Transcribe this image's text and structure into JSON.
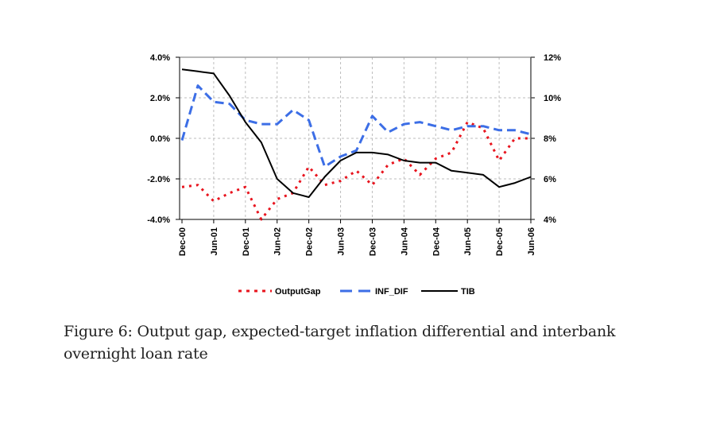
{
  "chart_data": {
    "type": "line",
    "title": "",
    "xlabel": "",
    "ylabel": "",
    "y2label": "",
    "ylim": [
      -4.0,
      4.0
    ],
    "y2lim": [
      4,
      12
    ],
    "yticks": [
      "4.0%",
      "2.0%",
      "0.0%",
      "-2.0%",
      "-4.0%"
    ],
    "ytick_values": [
      4,
      2,
      0,
      -2,
      -4
    ],
    "y2ticks": [
      "12%",
      "10%",
      "8%",
      "6%",
      "4%"
    ],
    "y2tick_values": [
      12,
      10,
      8,
      6,
      4
    ],
    "grid": true,
    "legend_position": "bottom",
    "x": [
      "Dec-00",
      "Mar-01",
      "Jun-01",
      "Sep-01",
      "Dec-01",
      "Mar-02",
      "Jun-02",
      "Sep-02",
      "Dec-02",
      "Mar-03",
      "Jun-03",
      "Sep-03",
      "Dec-03",
      "Mar-04",
      "Jun-04",
      "Sep-04",
      "Dec-04",
      "Mar-05",
      "Jun-05",
      "Sep-05",
      "Dec-05",
      "Mar-06",
      "Jun-06"
    ],
    "xtick_labels": [
      "Dec-00",
      "Jun-01",
      "Dec-01",
      "Jun-02",
      "Dec-02",
      "Jun-03",
      "Dec-03",
      "Jun-04",
      "Dec-04",
      "Jun-05",
      "Dec-05",
      "Jun-06"
    ],
    "series": [
      {
        "name": "OutputGap",
        "axis": "left",
        "style": "dotted",
        "color": "#e8141e",
        "values": [
          -2.4,
          -2.3,
          -3.1,
          -2.7,
          -2.4,
          -4.0,
          -3.0,
          -2.7,
          -1.4,
          -2.3,
          -2.1,
          -1.6,
          -2.3,
          -1.3,
          -1.0,
          -1.8,
          -1.0,
          -0.7,
          0.8,
          0.5,
          -1.1,
          0.0,
          0.0
        ]
      },
      {
        "name": "INF_DIF",
        "axis": "left",
        "style": "dashed",
        "color": "#3c6ee6",
        "values": [
          -0.1,
          2.6,
          1.8,
          1.7,
          0.9,
          0.7,
          0.7,
          1.4,
          0.9,
          -1.4,
          -0.9,
          -0.6,
          1.1,
          0.3,
          0.7,
          0.8,
          0.6,
          0.4,
          0.6,
          0.6,
          0.4,
          0.4,
          0.2
        ]
      },
      {
        "name": "TIB",
        "axis": "right",
        "style": "solid",
        "color": "#000000",
        "values": [
          11.4,
          11.3,
          11.2,
          10.1,
          8.8,
          7.8,
          6.0,
          5.3,
          5.1,
          6.1,
          6.9,
          7.3,
          7.3,
          7.2,
          6.9,
          6.8,
          6.8,
          6.4,
          6.3,
          6.2,
          5.6,
          5.8,
          6.1
        ]
      }
    ]
  },
  "caption": "Figure 6: Output gap, expected-target inflation differential and interbank overnight loan rate"
}
